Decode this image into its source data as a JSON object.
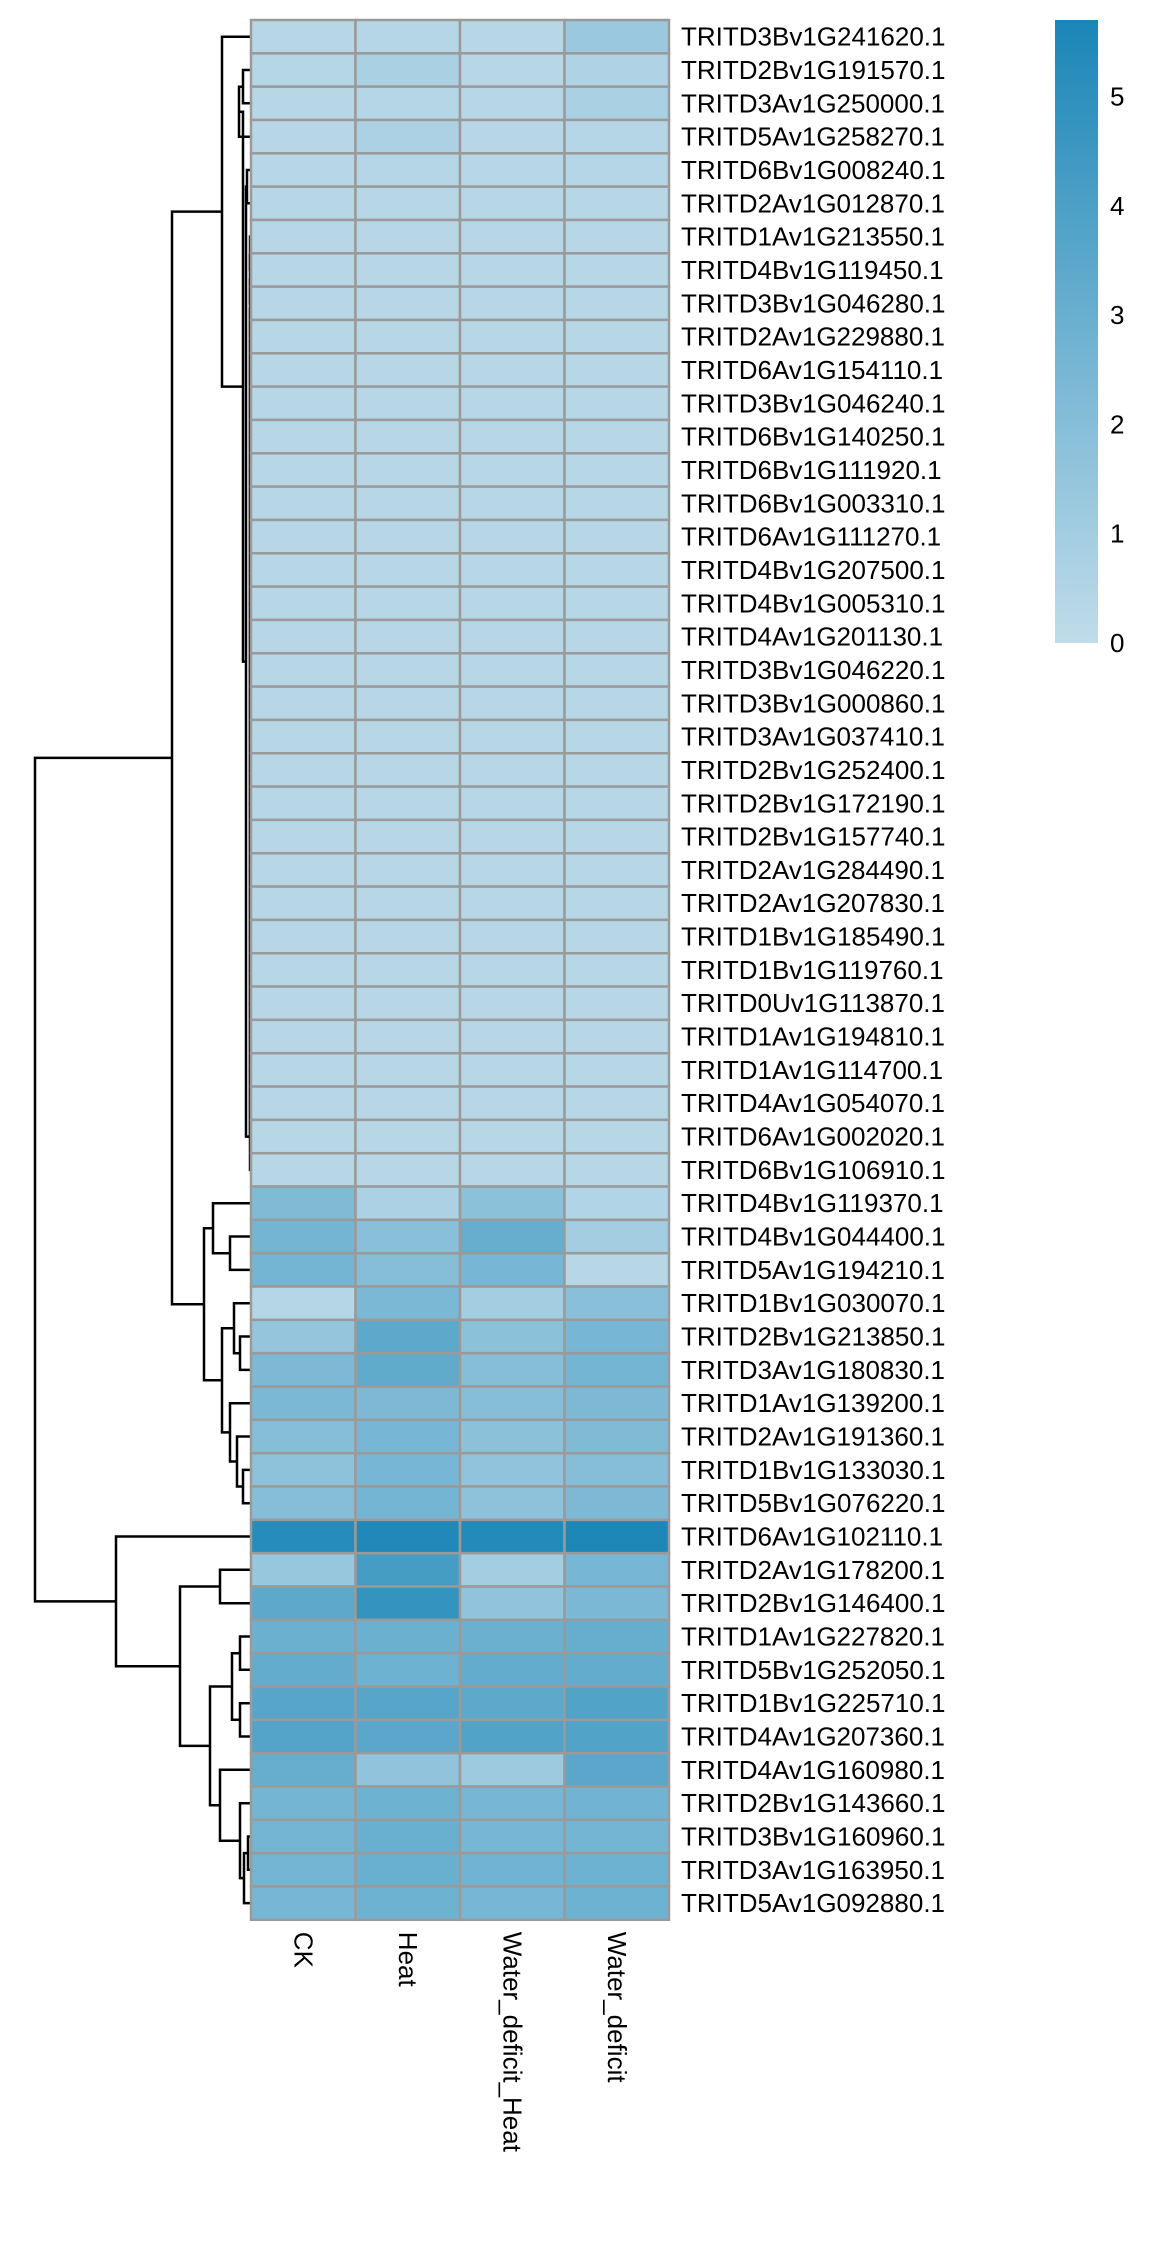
{
  "chart_data": {
    "type": "heatmap",
    "title": "",
    "xlabel": "",
    "ylabel": "",
    "columns": [
      "CK",
      "Heat",
      "Water_deficit_Heat",
      "Water_deficit"
    ],
    "rows": [
      "TRITD3Bv1G241620.1",
      "TRITD2Bv1G191570.1",
      "TRITD3Av1G250000.1",
      "TRITD5Av1G258270.1",
      "TRITD6Bv1G008240.1",
      "TRITD2Av1G012870.1",
      "TRITD1Av1G213550.1",
      "TRITD4Bv1G119450.1",
      "TRITD3Bv1G046280.1",
      "TRITD2Av1G229880.1",
      "TRITD6Av1G154110.1",
      "TRITD3Bv1G046240.1",
      "TRITD6Bv1G140250.1",
      "TRITD6Bv1G111920.1",
      "TRITD6Bv1G003310.1",
      "TRITD6Av1G111270.1",
      "TRITD4Bv1G207500.1",
      "TRITD4Bv1G005310.1",
      "TRITD4Av1G201130.1",
      "TRITD3Bv1G046220.1",
      "TRITD3Bv1G000860.1",
      "TRITD3Av1G037410.1",
      "TRITD2Bv1G252400.1",
      "TRITD2Bv1G172190.1",
      "TRITD2Bv1G157740.1",
      "TRITD2Av1G284490.1",
      "TRITD2Av1G207830.1",
      "TRITD1Bv1G185490.1",
      "TRITD1Bv1G119760.1",
      "TRITD0Uv1G113870.1",
      "TRITD1Av1G194810.1",
      "TRITD1Av1G114700.1",
      "TRITD4Av1G054070.1",
      "TRITD6Av1G002020.1",
      "TRITD6Bv1G106910.1",
      "TRITD4Bv1G119370.1",
      "TRITD4Bv1G044400.1",
      "TRITD5Av1G194210.1",
      "TRITD1Bv1G030070.1",
      "TRITD2Bv1G213850.1",
      "TRITD3Av1G180830.1",
      "TRITD1Av1G139200.1",
      "TRITD2Av1G191360.1",
      "TRITD1Bv1G133030.1",
      "TRITD5Bv1G076220.1",
      "TRITD6Av1G102110.1",
      "TRITD2Av1G178200.1",
      "TRITD2Bv1G146400.1",
      "TRITD1Av1G227820.1",
      "TRITD5Bv1G252050.1",
      "TRITD1Bv1G225710.1",
      "TRITD4Av1G207360.1",
      "TRITD4Av1G160980.1",
      "TRITD2Bv1G143660.1",
      "TRITD3Bv1G160960.1",
      "TRITD3Av1G163950.1",
      "TRITD5Av1G092880.1"
    ],
    "values": [
      [
        0.3,
        0.4,
        0.3,
        1.3
      ],
      [
        0.4,
        0.8,
        0.3,
        0.6
      ],
      [
        0.3,
        0.4,
        0.3,
        0.8
      ],
      [
        0.3,
        0.7,
        0.3,
        0.4
      ],
      [
        0.3,
        0.4,
        0.3,
        0.4
      ],
      [
        0.3,
        0.3,
        0.3,
        0.3
      ],
      [
        0.3,
        0.3,
        0.3,
        0.3
      ],
      [
        0.3,
        0.3,
        0.3,
        0.3
      ],
      [
        0.3,
        0.3,
        0.3,
        0.3
      ],
      [
        0.3,
        0.3,
        0.3,
        0.3
      ],
      [
        0.3,
        0.3,
        0.3,
        0.3
      ],
      [
        0.3,
        0.3,
        0.3,
        0.3
      ],
      [
        0.3,
        0.3,
        0.3,
        0.3
      ],
      [
        0.3,
        0.3,
        0.3,
        0.3
      ],
      [
        0.3,
        0.3,
        0.3,
        0.3
      ],
      [
        0.3,
        0.3,
        0.3,
        0.3
      ],
      [
        0.3,
        0.3,
        0.3,
        0.3
      ],
      [
        0.3,
        0.3,
        0.3,
        0.3
      ],
      [
        0.3,
        0.3,
        0.3,
        0.3
      ],
      [
        0.3,
        0.3,
        0.3,
        0.3
      ],
      [
        0.3,
        0.3,
        0.3,
        0.3
      ],
      [
        0.3,
        0.3,
        0.3,
        0.3
      ],
      [
        0.3,
        0.3,
        0.3,
        0.3
      ],
      [
        0.3,
        0.3,
        0.3,
        0.3
      ],
      [
        0.3,
        0.3,
        0.3,
        0.3
      ],
      [
        0.3,
        0.3,
        0.3,
        0.3
      ],
      [
        0.3,
        0.3,
        0.3,
        0.3
      ],
      [
        0.3,
        0.3,
        0.3,
        0.3
      ],
      [
        0.3,
        0.3,
        0.3,
        0.3
      ],
      [
        0.3,
        0.3,
        0.3,
        0.3
      ],
      [
        0.3,
        0.3,
        0.3,
        0.3
      ],
      [
        0.3,
        0.3,
        0.3,
        0.3
      ],
      [
        0.3,
        0.3,
        0.3,
        0.3
      ],
      [
        0.3,
        0.3,
        0.3,
        0.3
      ],
      [
        0.3,
        0.3,
        0.3,
        0.3
      ],
      [
        2.2,
        0.7,
        1.8,
        0.5
      ],
      [
        2.6,
        1.9,
        3.1,
        1.0
      ],
      [
        2.6,
        2.0,
        2.5,
        0.3
      ],
      [
        0.4,
        2.4,
        1.0,
        1.9
      ],
      [
        1.5,
        3.4,
        1.8,
        2.5
      ],
      [
        2.3,
        3.3,
        2.0,
        2.6
      ],
      [
        2.4,
        2.3,
        2.0,
        2.3
      ],
      [
        2.0,
        2.5,
        1.8,
        2.2
      ],
      [
        1.7,
        2.5,
        1.6,
        2.0
      ],
      [
        2.0,
        2.6,
        1.7,
        2.3
      ],
      [
        5.3,
        5.5,
        5.4,
        5.6
      ],
      [
        1.4,
        4.2,
        1.0,
        2.5
      ],
      [
        3.4,
        4.8,
        1.6,
        2.4
      ],
      [
        2.9,
        2.9,
        2.9,
        3.1
      ],
      [
        3.2,
        2.8,
        3.2,
        3.2
      ],
      [
        3.6,
        3.6,
        3.4,
        3.8
      ],
      [
        3.7,
        3.5,
        3.8,
        3.8
      ],
      [
        3.1,
        1.6,
        1.2,
        3.5
      ],
      [
        2.6,
        2.8,
        2.5,
        2.7
      ],
      [
        2.6,
        3.0,
        2.5,
        2.6
      ],
      [
        2.6,
        3.0,
        2.7,
        2.8
      ],
      [
        2.5,
        2.8,
        2.5,
        2.8
      ]
    ],
    "legend": {
      "placement": "top-right",
      "min": 0,
      "max": 5.7,
      "ticks": [
        0,
        1,
        2,
        3,
        4,
        5
      ],
      "tick_labels": [
        "0",
        "1",
        "2",
        "3",
        "4",
        "5"
      ],
      "low_color": "#c0dcea",
      "high_color": "#1a86b7"
    },
    "cell_border_color": "#9a9a9a",
    "dendrogram_side": "left",
    "grid": false
  }
}
